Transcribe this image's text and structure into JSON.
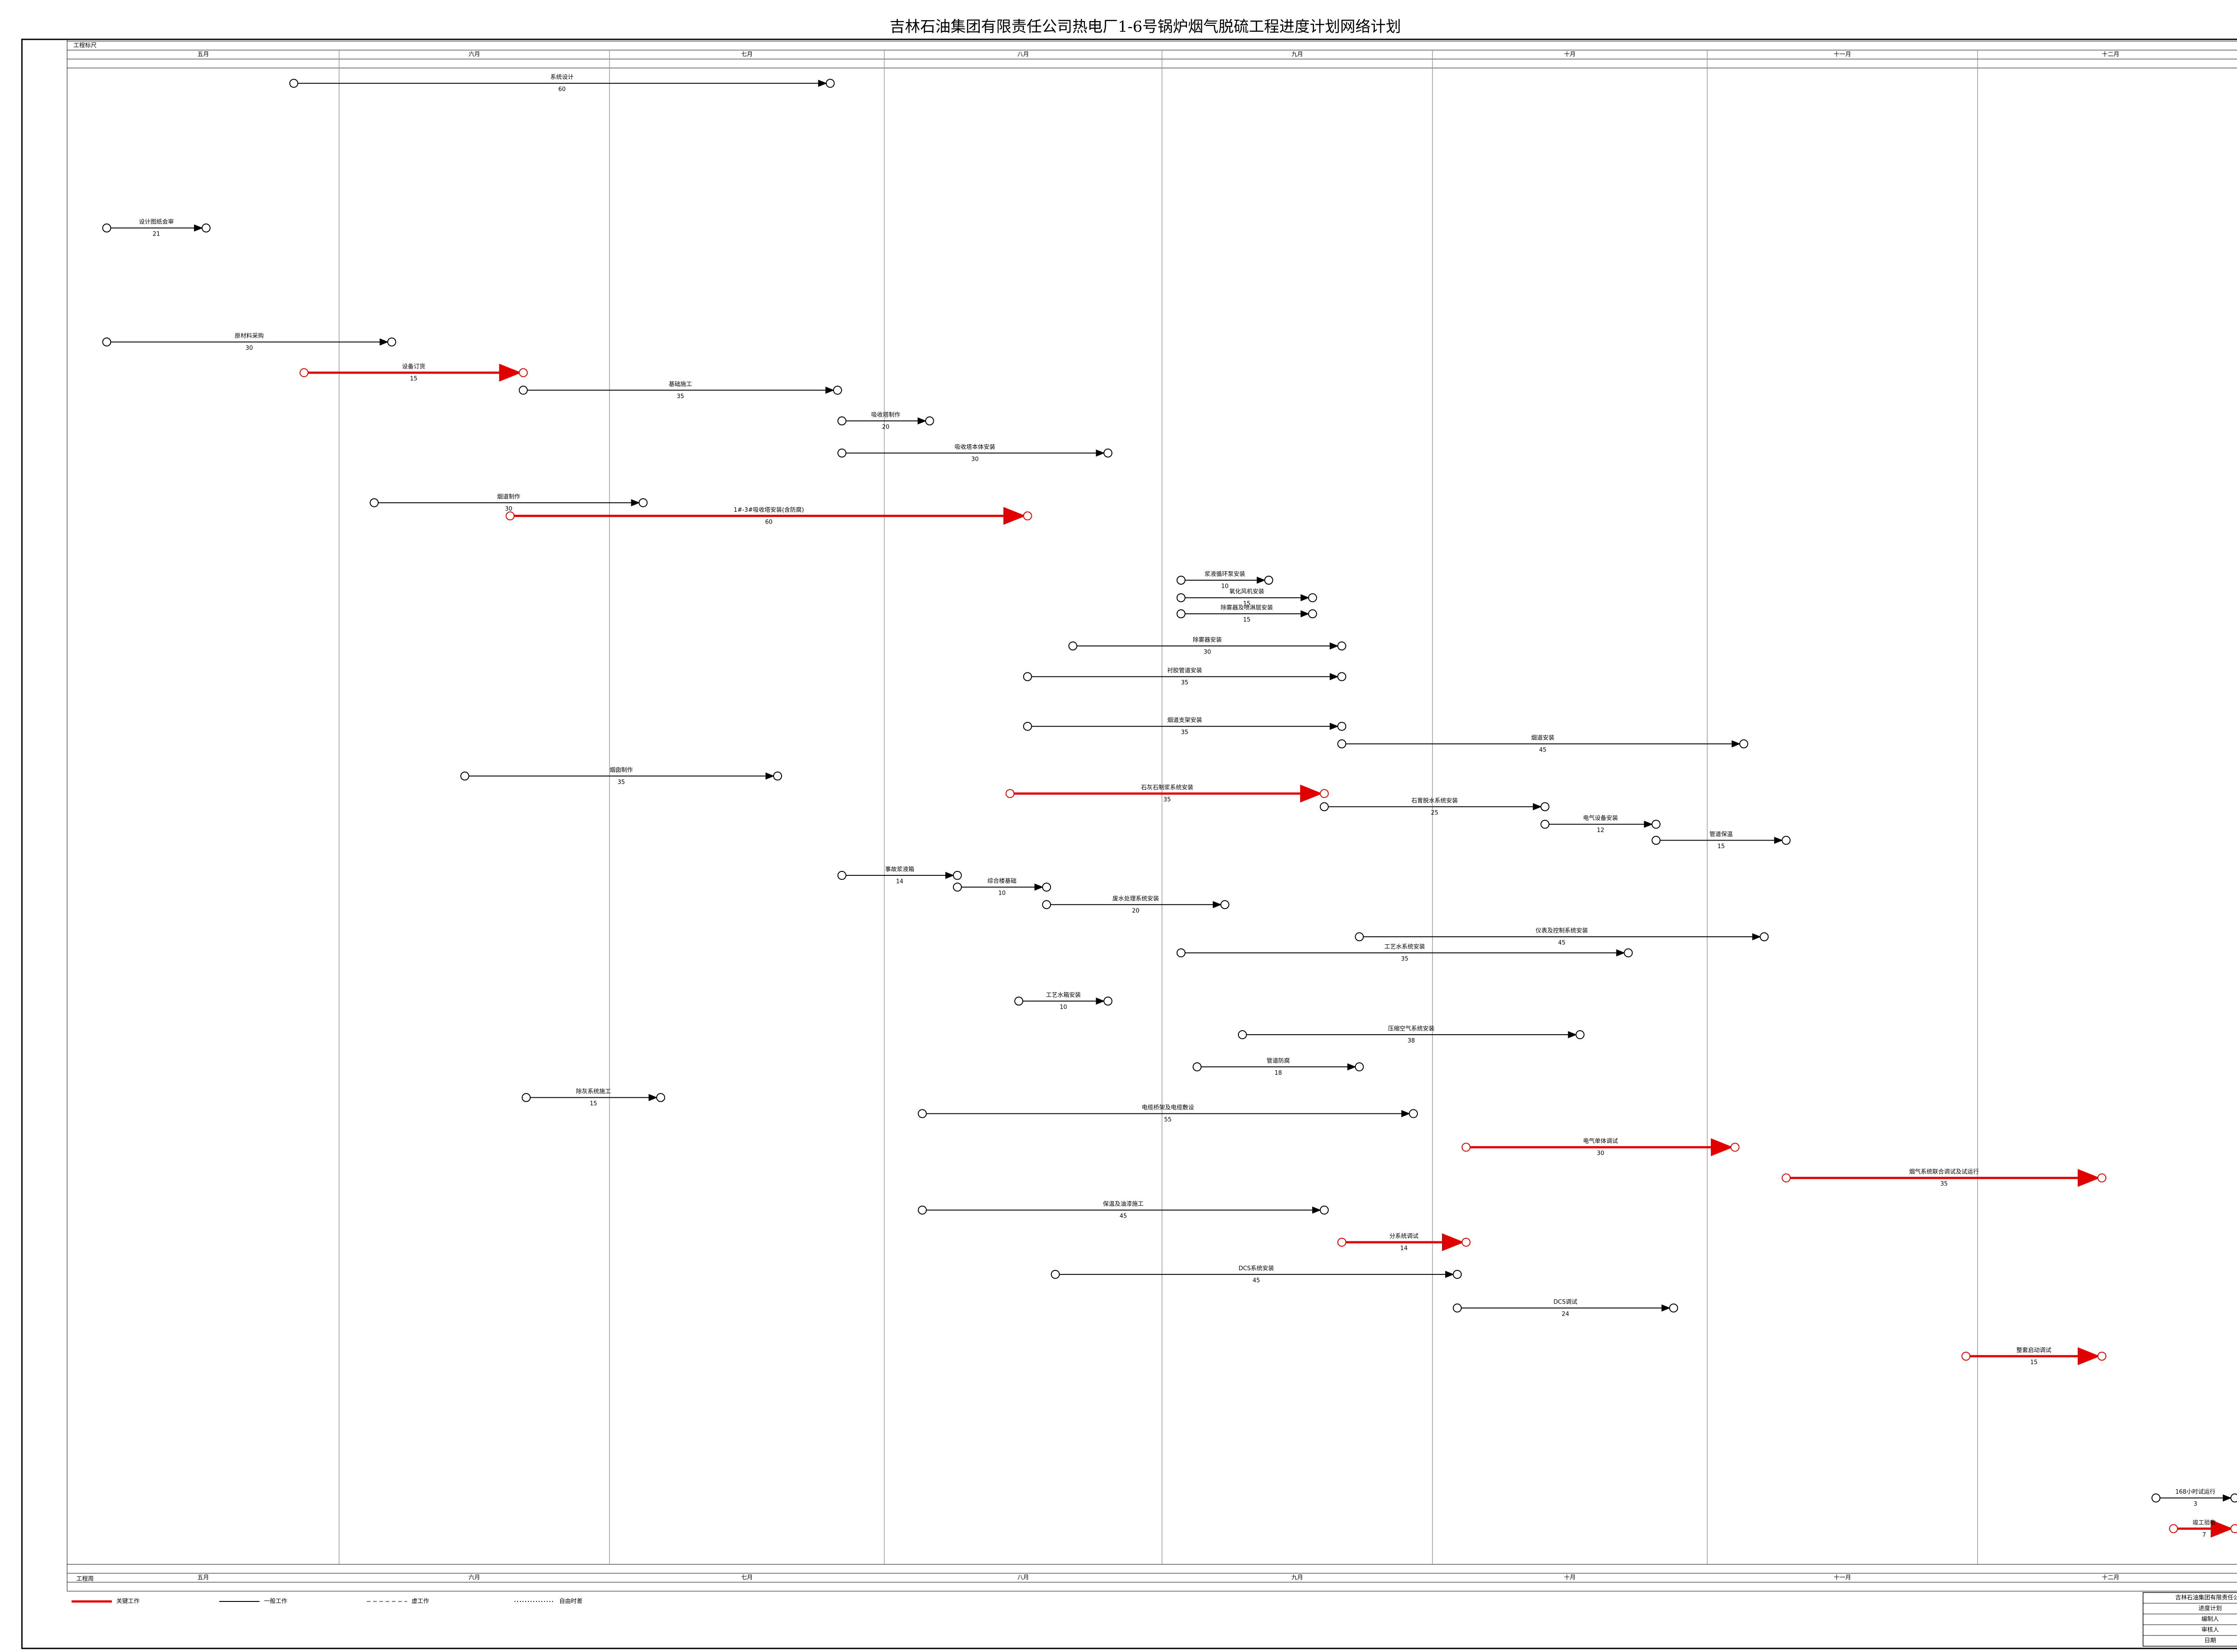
{
  "header": {
    "title": "吉林石油集团有限责任公司热电厂1-6号锅炉烟气脱硫工程进度计划网络计划",
    "scale_label": "工程标尺",
    "bottom_label": "工程周",
    "months": [
      "五月",
      "六月",
      "七月",
      "八月",
      "九月",
      "十月",
      "十一月",
      "十二月"
    ]
  },
  "settings": {
    "critical_color": "#e00000",
    "normal_color": "#000000",
    "dummy_color": "#cc33cc"
  },
  "activities": [
    {
      "label": "系统设计",
      "duration": "60",
      "critical": false
    },
    {
      "label": "设计图纸会审",
      "duration": "21",
      "critical": false
    },
    {
      "label": "原材料采购",
      "duration": "30",
      "critical": false
    },
    {
      "label": "设备订货",
      "duration": "15",
      "critical": true
    },
    {
      "label": "基础施工",
      "duration": "35",
      "critical": false
    },
    {
      "label": "吸收塔制作",
      "duration": "20",
      "critical": false
    },
    {
      "label": "吸收塔本体安装",
      "duration": "30",
      "critical": false
    },
    {
      "label": "烟道制作",
      "duration": "30",
      "critical": false
    },
    {
      "label": "1#-3#吸收塔安装(含防腐)",
      "duration": "60",
      "critical": true
    },
    {
      "label": "浆液循环泵安装",
      "duration": "10",
      "critical": false
    },
    {
      "label": "氧化风机安装",
      "duration": "15",
      "critical": false
    },
    {
      "label": "除雾器及喷淋层安装",
      "duration": "15",
      "critical": false
    },
    {
      "label": "除雾器安装",
      "duration": "30",
      "critical": false
    },
    {
      "label": "衬胶管道安装",
      "duration": "35",
      "critical": false
    },
    {
      "label": "烟道支架安装",
      "duration": "35",
      "critical": false
    },
    {
      "label": "烟道安装",
      "duration": "45",
      "critical": false
    },
    {
      "label": "烟囱制作",
      "duration": "35",
      "critical": false
    },
    {
      "label": "石灰石制浆系统安装",
      "duration": "35",
      "critical": true
    },
    {
      "label": "石膏脱水系统安装",
      "duration": "25",
      "critical": false
    },
    {
      "label": "电气设备安装",
      "duration": "12",
      "critical": false
    },
    {
      "label": "管道保温",
      "duration": "15",
      "critical": false
    },
    {
      "label": "事故浆液箱",
      "duration": "14",
      "critical": false
    },
    {
      "label": "综合楼基础",
      "duration": "10",
      "critical": false
    },
    {
      "label": "废水处理系统安装",
      "duration": "20",
      "critical": false
    },
    {
      "label": "仪表及控制系统安装",
      "duration": "45",
      "critical": false
    },
    {
      "label": "工艺水系统安装",
      "duration": "35",
      "critical": false
    },
    {
      "label": "工艺水箱安装",
      "duration": "10",
      "critical": false
    },
    {
      "label": "压缩空气系统安装",
      "duration": "38",
      "critical": false
    },
    {
      "label": "管道防腐",
      "duration": "18",
      "critical": false
    },
    {
      "label": "除灰系统施工",
      "duration": "15",
      "critical": false
    },
    {
      "label": "电缆桥架及电缆敷设",
      "duration": "55",
      "critical": false
    },
    {
      "label": "电气单体调试",
      "duration": "30",
      "critical": true
    },
    {
      "label": "烟气系统联合调试及试运行",
      "duration": "35",
      "critical": true
    },
    {
      "label": "保温及油漆施工",
      "duration": "45",
      "critical": false
    },
    {
      "label": "分系统调试",
      "duration": "14",
      "critical": true
    },
    {
      "label": "DCS系统安装",
      "duration": "45",
      "critical": false
    },
    {
      "label": "DCS调试",
      "duration": "24",
      "critical": false
    },
    {
      "label": "整套启动调试",
      "duration": "15",
      "critical": true
    },
    {
      "label": "168小时试运行",
      "duration": "3",
      "critical": false
    },
    {
      "label": "竣工验收",
      "duration": "7",
      "critical": true
    }
  ],
  "legend": {
    "items": [
      "关键工作",
      "一般工作",
      "虚工作",
      "自由时差"
    ]
  },
  "title_block": {
    "company": "吉林石油集团有限责任公司",
    "name": "进度计划",
    "prepared": "编制人",
    "checked": "审核人",
    "date": "日期"
  }
}
